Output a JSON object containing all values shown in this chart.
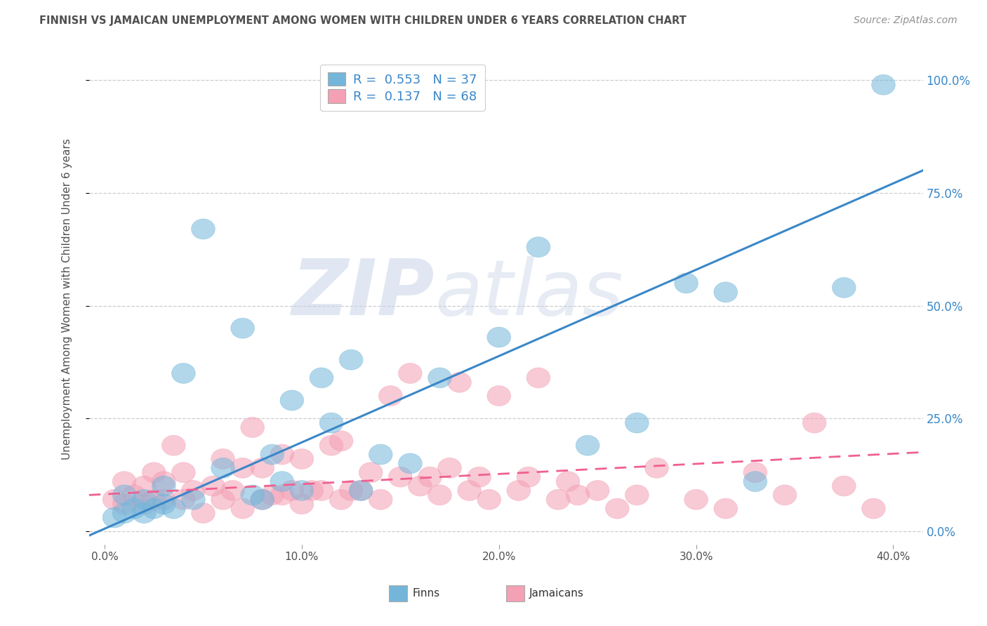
{
  "title": "FINNISH VS JAMAICAN UNEMPLOYMENT AMONG WOMEN WITH CHILDREN UNDER 6 YEARS CORRELATION CHART",
  "source": "Source: ZipAtlas.com",
  "ylabel": "Unemployment Among Women with Children Under 6 years",
  "xlabel_ticks": [
    "0.0%",
    "10.0%",
    "20.0%",
    "30.0%",
    "40.0%"
  ],
  "xlabel_vals": [
    0.0,
    0.1,
    0.2,
    0.3,
    0.4
  ],
  "ylabel_ticks": [
    "0.0%",
    "25.0%",
    "50.0%",
    "75.0%",
    "100.0%"
  ],
  "ylabel_vals": [
    0.0,
    0.25,
    0.5,
    0.75,
    1.0
  ],
  "finn_R": "0.553",
  "finn_N": "37",
  "jam_R": "0.137",
  "jam_N": "68",
  "finn_color": "#74b6da",
  "jam_color": "#f4a0b5",
  "finn_line_color": "#3a87c8",
  "jam_line_color": "#f06090",
  "title_color": "#505050",
  "source_color": "#909090",
  "background_color": "#ffffff",
  "grid_color": "#c8c8c8",
  "finn_scatter_x": [
    0.005,
    0.01,
    0.01,
    0.015,
    0.02,
    0.02,
    0.025,
    0.03,
    0.03,
    0.035,
    0.04,
    0.045,
    0.05,
    0.06,
    0.07,
    0.075,
    0.08,
    0.085,
    0.09,
    0.095,
    0.1,
    0.11,
    0.115,
    0.125,
    0.13,
    0.14,
    0.155,
    0.17,
    0.2,
    0.22,
    0.245,
    0.27,
    0.295,
    0.315,
    0.33,
    0.375,
    0.395
  ],
  "finn_scatter_y": [
    0.03,
    0.04,
    0.08,
    0.05,
    0.04,
    0.07,
    0.05,
    0.06,
    0.1,
    0.05,
    0.35,
    0.07,
    0.67,
    0.14,
    0.45,
    0.08,
    0.07,
    0.17,
    0.11,
    0.29,
    0.09,
    0.34,
    0.24,
    0.38,
    0.09,
    0.17,
    0.15,
    0.34,
    0.43,
    0.63,
    0.19,
    0.24,
    0.55,
    0.53,
    0.11,
    0.54,
    0.99
  ],
  "jam_scatter_x": [
    0.005,
    0.01,
    0.01,
    0.015,
    0.02,
    0.02,
    0.025,
    0.025,
    0.03,
    0.03,
    0.035,
    0.04,
    0.04,
    0.045,
    0.05,
    0.055,
    0.06,
    0.06,
    0.065,
    0.07,
    0.07,
    0.075,
    0.08,
    0.08,
    0.085,
    0.09,
    0.09,
    0.095,
    0.1,
    0.1,
    0.105,
    0.11,
    0.115,
    0.12,
    0.12,
    0.125,
    0.13,
    0.135,
    0.14,
    0.145,
    0.15,
    0.155,
    0.16,
    0.165,
    0.17,
    0.175,
    0.18,
    0.185,
    0.19,
    0.195,
    0.2,
    0.21,
    0.215,
    0.22,
    0.23,
    0.235,
    0.24,
    0.25,
    0.26,
    0.27,
    0.28,
    0.3,
    0.315,
    0.33,
    0.345,
    0.36,
    0.375,
    0.39
  ],
  "jam_scatter_y": [
    0.07,
    0.06,
    0.11,
    0.08,
    0.06,
    0.1,
    0.07,
    0.13,
    0.07,
    0.11,
    0.19,
    0.07,
    0.13,
    0.09,
    0.04,
    0.1,
    0.07,
    0.16,
    0.09,
    0.05,
    0.14,
    0.23,
    0.07,
    0.14,
    0.08,
    0.08,
    0.17,
    0.09,
    0.06,
    0.16,
    0.09,
    0.09,
    0.19,
    0.07,
    0.2,
    0.09,
    0.09,
    0.13,
    0.07,
    0.3,
    0.12,
    0.35,
    0.1,
    0.12,
    0.08,
    0.14,
    0.33,
    0.09,
    0.12,
    0.07,
    0.3,
    0.09,
    0.12,
    0.34,
    0.07,
    0.11,
    0.08,
    0.09,
    0.05,
    0.08,
    0.14,
    0.07,
    0.05,
    0.13,
    0.08,
    0.24,
    0.1,
    0.05
  ],
  "watermark_zip_color": "#c8d4e8",
  "watermark_atlas_color": "#c8d4e8"
}
